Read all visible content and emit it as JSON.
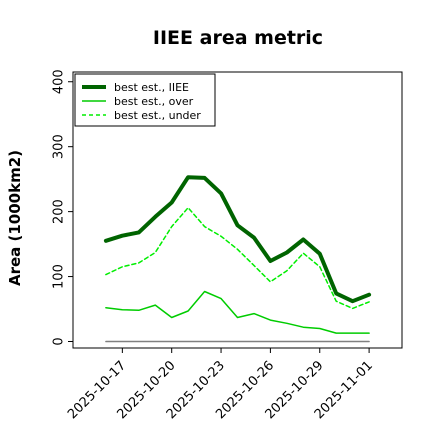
{
  "chart_data": {
    "type": "line",
    "title": "IIEE area metric",
    "xlabel": "",
    "ylabel": "Area (1000km2)",
    "ylim": [
      -10,
      415
    ],
    "yticks": [
      0,
      100,
      200,
      300,
      400
    ],
    "xlim": [
      "2025-10-14",
      "2025-11-03"
    ],
    "xticks": [
      "2025-10-17",
      "2025-10-20",
      "2025-10-23",
      "2025-10-26",
      "2025-10-29",
      "2025-11-01"
    ],
    "x": [
      "2025-10-16",
      "2025-10-17",
      "2025-10-18",
      "2025-10-19",
      "2025-10-20",
      "2025-10-21",
      "2025-10-22",
      "2025-10-23",
      "2025-10-24",
      "2025-10-25",
      "2025-10-26",
      "2025-10-27",
      "2025-10-28",
      "2025-10-29",
      "2025-10-30",
      "2025-10-31",
      "2025-11-01"
    ],
    "series": [
      {
        "name": "best est., IIEE",
        "color": "#006400",
        "style": "solid",
        "width": 4,
        "values": [
          155,
          163,
          168,
          192,
          214,
          253,
          252,
          228,
          179,
          160,
          124,
          137,
          157,
          135,
          74,
          62,
          72
        ]
      },
      {
        "name": "best est., over",
        "color": "#00cc00",
        "style": "solid",
        "width": 1.5,
        "values": [
          52,
          49,
          48,
          56,
          37,
          47,
          77,
          66,
          37,
          43,
          33,
          28,
          22,
          20,
          13,
          13,
          13
        ]
      },
      {
        "name": "best est., under",
        "color": "#00ee00",
        "style": "dashed",
        "width": 1.5,
        "values": [
          103,
          115,
          121,
          137,
          177,
          206,
          177,
          162,
          142,
          117,
          92,
          109,
          136,
          115,
          62,
          51,
          61
        ]
      },
      {
        "name": "",
        "color": "#808080",
        "style": "solid",
        "width": 1.5,
        "values": [
          0,
          0,
          0,
          0,
          0,
          0,
          0,
          0,
          0,
          0,
          0,
          0,
          0,
          0,
          0,
          0,
          0
        ]
      }
    ],
    "legend_position": "top-left",
    "grid": false
  }
}
